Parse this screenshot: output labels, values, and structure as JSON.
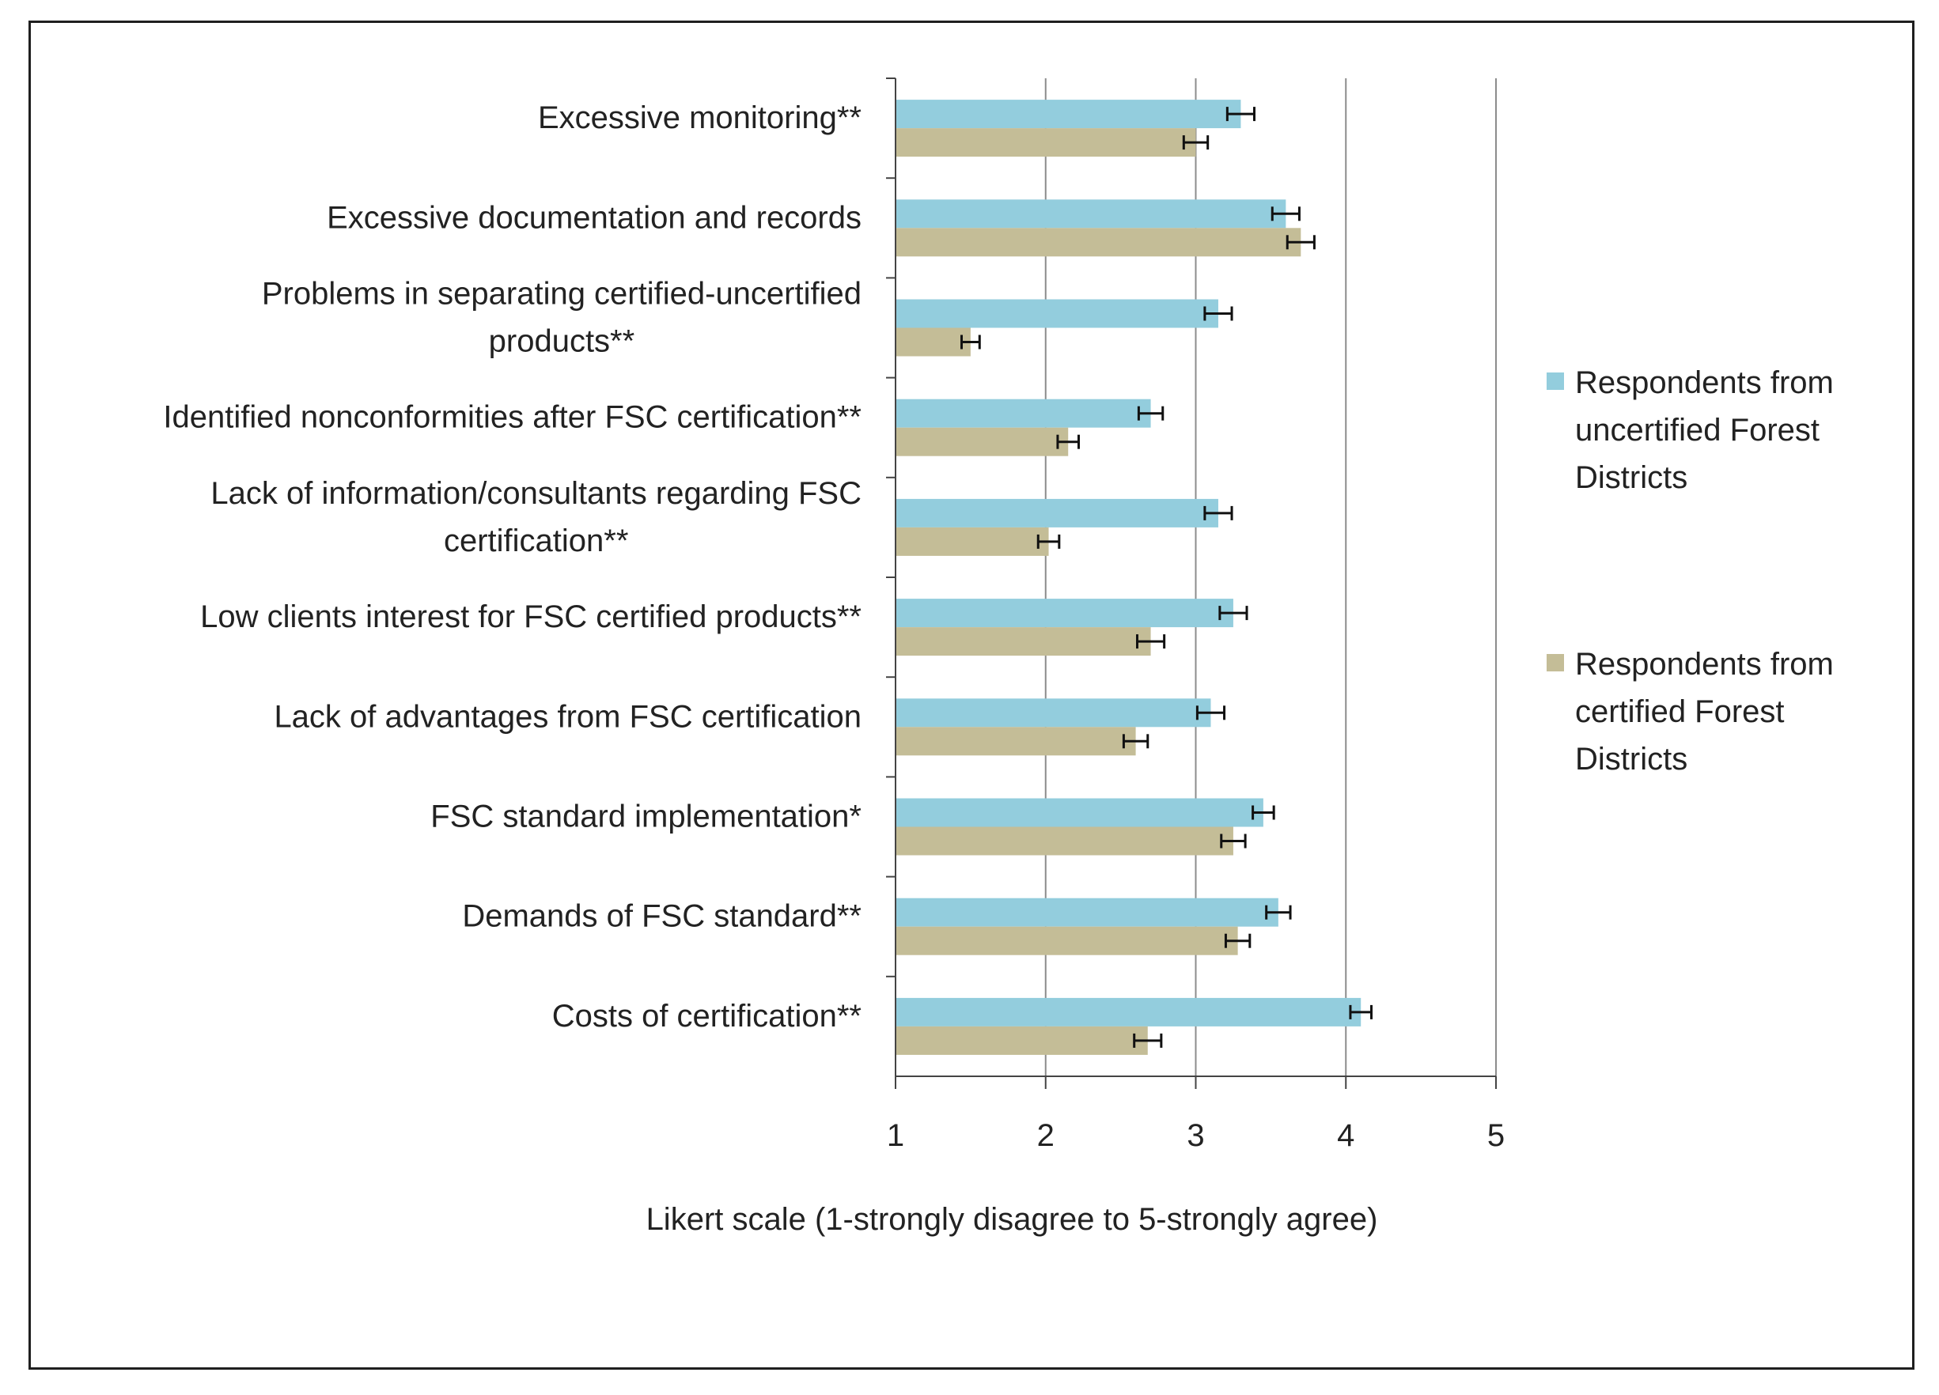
{
  "chart_data": {
    "type": "bar",
    "orientation": "horizontal",
    "title": "",
    "xlabel": "Likert scale (1-strongly disagree to 5-strongly agree)",
    "ylabel": "",
    "xlim": [
      1,
      5
    ],
    "xticks": [
      "1",
      "2",
      "3",
      "4",
      "5"
    ],
    "grid": true,
    "legend_position": "right",
    "categories": [
      "Excessive monitoring**",
      "Excessive documentation and records",
      "Problems in separating certified-uncertified products**",
      "Identified nonconformities after FSC certification**",
      "Lack of information/consultants regarding FSC certification**",
      "Low clients interest for FSC certified products**",
      "Lack of advantages from FSC certification",
      "FSC standard implementation*",
      "Demands of FSC standard**",
      "Costs of certification**"
    ],
    "category_lines": [
      [
        "Excessive monitoring**"
      ],
      [
        "Excessive documentation and records"
      ],
      [
        "Problems in separating certified-uncertified",
        "products**"
      ],
      [
        "Identified nonconformities after FSC certification**"
      ],
      [
        "Lack of information/consultants regarding FSC",
        "certification**"
      ],
      [
        "Low clients interest for FSC certified products**"
      ],
      [
        "Lack of advantages from FSC certification"
      ],
      [
        "FSC standard implementation*"
      ],
      [
        "Demands of FSC standard**"
      ],
      [
        "Costs of certification**"
      ]
    ],
    "series": [
      {
        "name": "Respondents from uncertified Forest Districts",
        "legend_lines": [
          "Respondents from",
          "uncertified Forest",
          "Districts"
        ],
        "color": "#93CDDD",
        "values": [
          3.3,
          3.6,
          3.15,
          2.7,
          3.15,
          3.25,
          3.1,
          3.45,
          3.55,
          4.1
        ],
        "errors": [
          0.09,
          0.09,
          0.09,
          0.08,
          0.09,
          0.09,
          0.09,
          0.07,
          0.08,
          0.07
        ]
      },
      {
        "name": "Respondents from certified Forest Districts",
        "legend_lines": [
          "Respondents from",
          "certified Forest",
          "Districts"
        ],
        "color": "#C4BD97",
        "values": [
          3.0,
          3.7,
          1.5,
          2.15,
          2.02,
          2.7,
          2.6,
          3.25,
          3.28,
          2.68
        ],
        "errors": [
          0.08,
          0.09,
          0.06,
          0.07,
          0.07,
          0.09,
          0.08,
          0.08,
          0.08,
          0.09
        ]
      }
    ]
  }
}
